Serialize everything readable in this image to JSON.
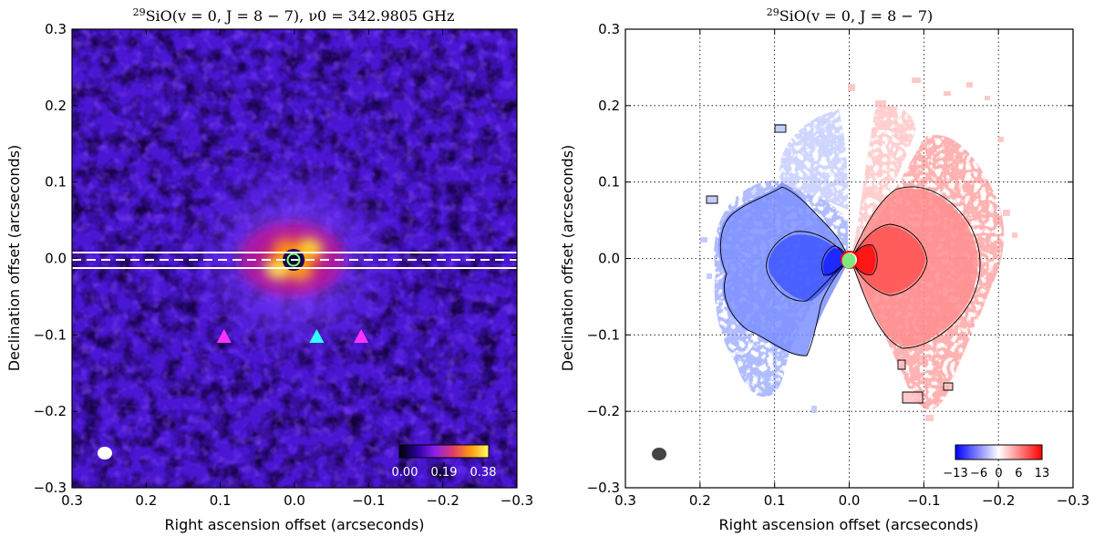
{
  "chart_data": [
    {
      "type": "heatmap",
      "title_sup": "29",
      "title": "SiO(v = 0,  J = 8 − 7),  ν0 = 342.9805 GHz",
      "xlabel": "Right ascension offset (arcseconds)",
      "ylabel": "Declination offset (arcseconds)",
      "xlim": [
        0.3,
        -0.3
      ],
      "ylim": [
        -0.3,
        0.3
      ],
      "xticks": [
        0.3,
        0.2,
        0.1,
        0.0,
        -0.1,
        -0.2,
        -0.3
      ],
      "yticks": [
        0.3,
        0.2,
        0.1,
        0.0,
        -0.1,
        -0.2,
        -0.3
      ],
      "xtick_labels": [
        "0.3",
        "0.2",
        "0.1",
        "0.0",
        "−0.1",
        "−0.2",
        "−0.3"
      ],
      "ytick_labels": [
        "0.3",
        "0.2",
        "0.1",
        "0.0",
        "−0.1",
        "−0.2",
        "−0.3"
      ],
      "grid": false,
      "colorbar": {
        "ticks": [
          "0.00",
          "0.19",
          "0.38"
        ],
        "range": [
          0.0,
          0.38
        ],
        "cmap": "gnuplot2"
      },
      "slit": {
        "center_dec": 0.0,
        "half_width": 0.01
      },
      "markers": [
        {
          "ra": 0.095,
          "dec": -0.102,
          "color": "#ff33ff"
        },
        {
          "ra": -0.03,
          "dec": -0.102,
          "color": "#33ffff"
        },
        {
          "ra": -0.09,
          "dec": -0.102,
          "color": "#ff33ff"
        }
      ],
      "beam": {
        "ra": 0.255,
        "dec": -0.262
      },
      "star": {
        "ra": 0.0,
        "dec": 0.0,
        "color": "#7fff7f"
      }
    },
    {
      "type": "heatmap",
      "title_sup": "29",
      "title": "SiO(v = 0,  J = 8 − 7)",
      "xlabel": "Right ascension offset (arcseconds)",
      "ylabel": "Declination offset (arcseconds)",
      "xlim": [
        0.3,
        -0.3
      ],
      "ylim": [
        -0.3,
        0.3
      ],
      "xticks": [
        0.3,
        0.2,
        0.1,
        0.0,
        -0.1,
        -0.2,
        -0.3
      ],
      "yticks": [
        0.3,
        0.2,
        0.1,
        0.0,
        -0.1,
        -0.2,
        -0.3
      ],
      "xtick_labels": [
        "0.3",
        "0.2",
        "0.1",
        "0.0",
        "−0.1",
        "−0.2",
        "−0.3"
      ],
      "ytick_labels": [
        "0.3",
        "0.2",
        "0.1",
        "0.0",
        "−0.1",
        "−0.2",
        "−0.3"
      ],
      "grid": true,
      "colorbar": {
        "ticks": [
          "−13",
          "−6",
          "0",
          "6",
          "13"
        ],
        "range": [
          -13,
          13
        ],
        "cmap": "bwr"
      },
      "beam": {
        "ra": 0.255,
        "dec": -0.262
      },
      "star": {
        "ra": 0.0,
        "dec": 0.0,
        "color": "#7fff7f"
      }
    }
  ]
}
